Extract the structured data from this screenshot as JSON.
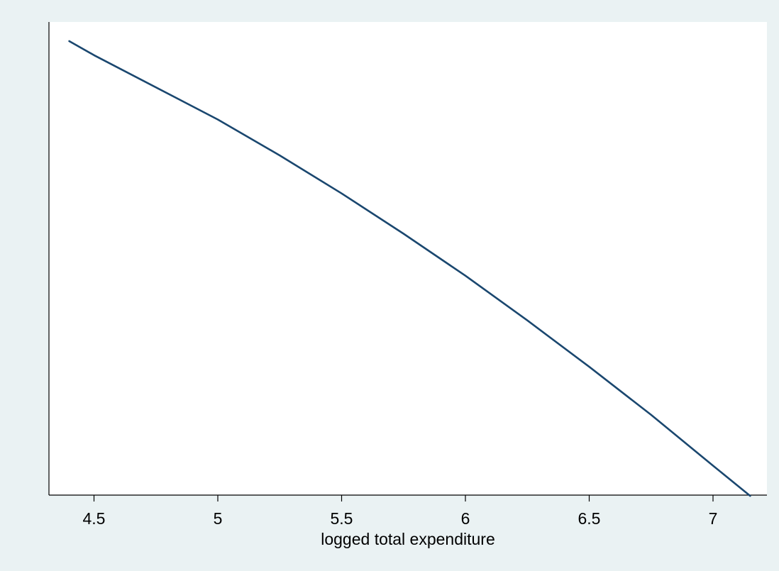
{
  "chart_data": {
    "type": "line",
    "title": "",
    "xlabel": "logged total expenditure",
    "ylabel": "",
    "xlim": [
      4.35,
      7.2
    ],
    "ylim": [
      0,
      1
    ],
    "xticks": [
      4.5,
      5,
      5.5,
      6,
      6.5,
      7
    ],
    "xtick_labels": [
      "4.5",
      "5",
      "5.5",
      "6",
      "6.5",
      "7"
    ],
    "yticks_shown": false,
    "grid": false,
    "legend": "none",
    "series": [
      {
        "x": [
          4.4,
          4.5,
          5.0,
          5.25,
          5.5,
          5.75,
          6.0,
          6.25,
          6.5,
          6.75,
          7.0,
          7.15
        ],
        "y": [
          0.987,
          0.955,
          0.808,
          0.726,
          0.639,
          0.547,
          0.451,
          0.349,
          0.243,
          0.133,
          0.017,
          -0.052
        ]
      }
    ],
    "colors": {
      "plot_background": "#ffffff",
      "figure_background": "#eaf2f3",
      "line": "#1a476f",
      "axis": "#000000"
    }
  }
}
